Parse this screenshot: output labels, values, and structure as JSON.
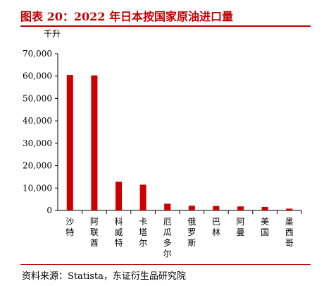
{
  "header": {
    "title": "图表 20：2022 年日本按国家原油进口量"
  },
  "footer": {
    "source": "资料来源：Statista，东证衍生品研究院"
  },
  "chart_data": {
    "type": "bar",
    "title": "",
    "xlabel": "",
    "ylabel": "千升",
    "ylim": [
      0,
      70000
    ],
    "yticks": [
      "0",
      "10,000",
      "20,000",
      "30,000",
      "40,000",
      "50,000",
      "60,000",
      "70,000"
    ],
    "categories": [
      "沙特",
      "阿联酋",
      "科威特",
      "卡塔尔",
      "厄瓜多尔",
      "俄罗斯",
      "巴林",
      "阿曼",
      "美国",
      "墨西哥"
    ],
    "values": [
      60500,
      60300,
      12800,
      11500,
      3000,
      2100,
      2000,
      1800,
      1600,
      800
    ],
    "colors": {
      "bar": "#cc0000",
      "axis": "#000000",
      "accent": "#c00000"
    }
  }
}
